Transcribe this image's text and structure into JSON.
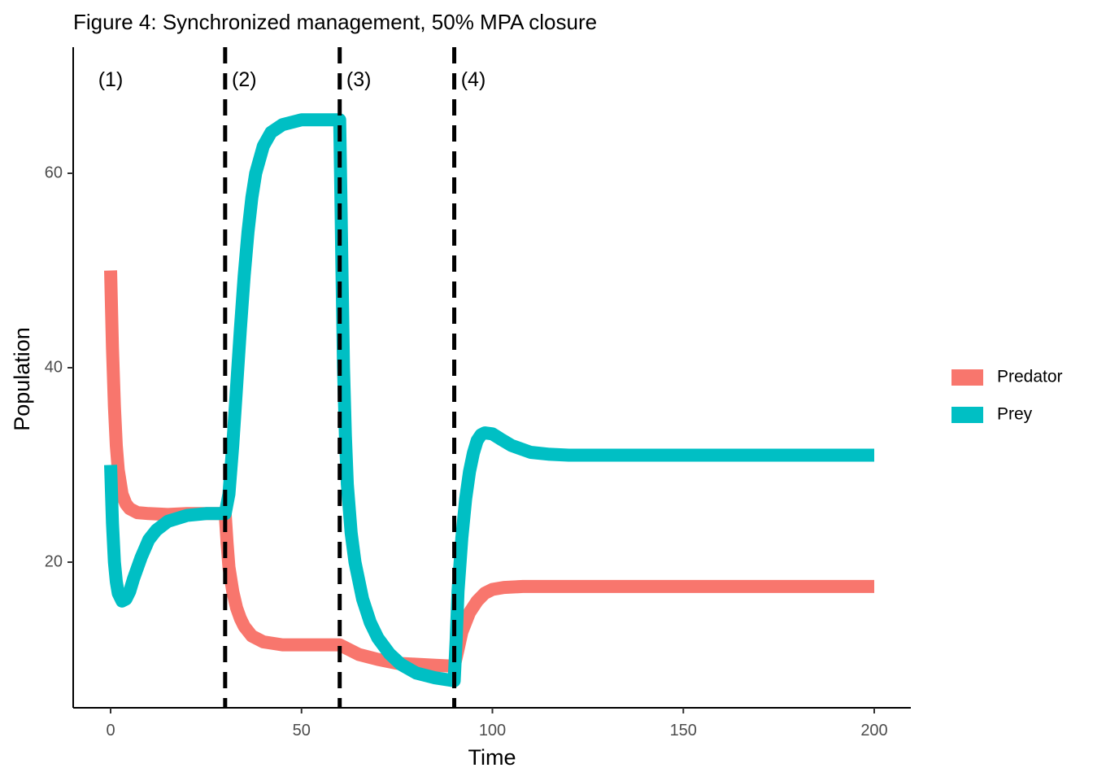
{
  "chart_data": {
    "type": "line",
    "title": "Figure 4: Synchronized management, 50% MPA closure",
    "xlabel": "Time",
    "ylabel": "Population",
    "xlim": [
      -10,
      210
    ],
    "ylim": [
      5,
      73
    ],
    "x_ticks": [
      0,
      50,
      100,
      150,
      200
    ],
    "y_ticks": [
      20,
      40,
      60
    ],
    "grid": false,
    "legend_position": "right",
    "vlines": [
      30,
      60,
      90
    ],
    "vline_style": "dashed",
    "annotations": [
      {
        "text": "(1)",
        "x": 0,
        "y": 69.5
      },
      {
        "text": "(2)",
        "x": 35,
        "y": 69.5
      },
      {
        "text": "(3)",
        "x": 65,
        "y": 69.5
      },
      {
        "text": "(4)",
        "x": 95,
        "y": 69.5
      }
    ],
    "series": [
      {
        "name": "Predator",
        "color": "#F8766D",
        "points": [
          [
            0,
            50
          ],
          [
            0.5,
            42
          ],
          [
            1,
            36
          ],
          [
            1.5,
            32
          ],
          [
            2,
            29.5
          ],
          [
            3,
            27
          ],
          [
            4,
            26
          ],
          [
            5,
            25.5
          ],
          [
            7,
            25.1
          ],
          [
            10,
            25
          ],
          [
            15,
            24.9
          ],
          [
            20,
            25
          ],
          [
            25,
            25
          ],
          [
            30,
            25
          ],
          [
            30.5,
            22
          ],
          [
            31,
            19.5
          ],
          [
            32,
            17
          ],
          [
            33,
            15.3
          ],
          [
            34,
            14.2
          ],
          [
            35,
            13.4
          ],
          [
            37,
            12.4
          ],
          [
            40,
            11.8
          ],
          [
            45,
            11.5
          ],
          [
            50,
            11.5
          ],
          [
            55,
            11.5
          ],
          [
            60,
            11.5
          ],
          [
            62,
            11.1
          ],
          [
            65,
            10.5
          ],
          [
            70,
            10.0
          ],
          [
            75,
            9.6
          ],
          [
            80,
            9.5
          ],
          [
            85,
            9.4
          ],
          [
            90,
            9.3
          ],
          [
            91,
            11
          ],
          [
            92,
            12.8
          ],
          [
            94,
            14.8
          ],
          [
            96,
            16
          ],
          [
            98,
            16.8
          ],
          [
            100,
            17.2
          ],
          [
            103,
            17.4
          ],
          [
            108,
            17.5
          ],
          [
            120,
            17.5
          ],
          [
            150,
            17.5
          ],
          [
            200,
            17.5
          ]
        ]
      },
      {
        "name": "Prey",
        "color": "#00BFC4",
        "points": [
          [
            0,
            30
          ],
          [
            0.5,
            24
          ],
          [
            1,
            20
          ],
          [
            1.5,
            18
          ],
          [
            2,
            16.8
          ],
          [
            3,
            16.0
          ],
          [
            4,
            16.2
          ],
          [
            5,
            17.0
          ],
          [
            6,
            18.3
          ],
          [
            8,
            20.5
          ],
          [
            10,
            22.3
          ],
          [
            12,
            23.3
          ],
          [
            15,
            24.2
          ],
          [
            20,
            24.8
          ],
          [
            25,
            25
          ],
          [
            30,
            25
          ],
          [
            31,
            27
          ],
          [
            32,
            32
          ],
          [
            33,
            38
          ],
          [
            34,
            44
          ],
          [
            35,
            49.5
          ],
          [
            36,
            54
          ],
          [
            37,
            57.5
          ],
          [
            38,
            60
          ],
          [
            40,
            62.8
          ],
          [
            42,
            64.2
          ],
          [
            45,
            65
          ],
          [
            50,
            65.5
          ],
          [
            55,
            65.5
          ],
          [
            60,
            65.5
          ],
          [
            60.3,
            58
          ],
          [
            60.6,
            50
          ],
          [
            61,
            40
          ],
          [
            61.5,
            33
          ],
          [
            62,
            28
          ],
          [
            63,
            23
          ],
          [
            64,
            20
          ],
          [
            66,
            16.2
          ],
          [
            68,
            13.8
          ],
          [
            70,
            12.2
          ],
          [
            73,
            10.6
          ],
          [
            76,
            9.5
          ],
          [
            80,
            8.6
          ],
          [
            85,
            8.1
          ],
          [
            90,
            7.8
          ],
          [
            90.5,
            12
          ],
          [
            91,
            17
          ],
          [
            92,
            22.5
          ],
          [
            93,
            26.5
          ],
          [
            94,
            29.3
          ],
          [
            95,
            31.2
          ],
          [
            96,
            32.5
          ],
          [
            97,
            33.1
          ],
          [
            98,
            33.3
          ],
          [
            100,
            33.2
          ],
          [
            102,
            32.7
          ],
          [
            105,
            32
          ],
          [
            110,
            31.3
          ],
          [
            115,
            31.1
          ],
          [
            120,
            31
          ],
          [
            150,
            31
          ],
          [
            200,
            31
          ]
        ]
      }
    ]
  }
}
